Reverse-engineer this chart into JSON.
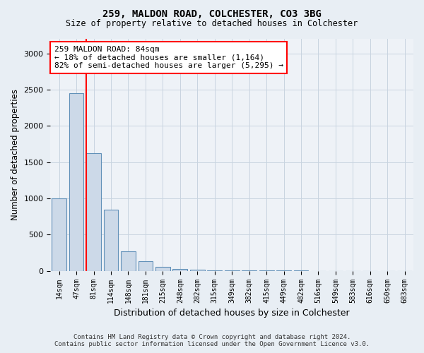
{
  "title1": "259, MALDON ROAD, COLCHESTER, CO3 3BG",
  "title2": "Size of property relative to detached houses in Colchester",
  "xlabel": "Distribution of detached houses by size in Colchester",
  "ylabel": "Number of detached properties",
  "categories": [
    "14sqm",
    "47sqm",
    "81sqm",
    "114sqm",
    "148sqm",
    "181sqm",
    "215sqm",
    "248sqm",
    "282sqm",
    "315sqm",
    "349sqm",
    "382sqm",
    "415sqm",
    "449sqm",
    "482sqm",
    "516sqm",
    "549sqm",
    "583sqm",
    "616sqm",
    "650sqm",
    "683sqm"
  ],
  "values": [
    1000,
    2450,
    1620,
    840,
    265,
    130,
    55,
    25,
    15,
    8,
    5,
    4,
    3,
    2,
    2,
    1,
    1,
    1,
    1,
    1,
    1
  ],
  "bar_color": "#ccd9e8",
  "bar_edge_color": "#6090b8",
  "red_line_bar_index": 2,
  "annotation_line1": "259 MALDON ROAD: 84sqm",
  "annotation_line2": "← 18% of detached houses are smaller (1,164)",
  "annotation_line3": "82% of semi-detached houses are larger (5,295) →",
  "annotation_box_facecolor": "white",
  "annotation_box_edgecolor": "red",
  "red_line_color": "red",
  "footnote": "Contains HM Land Registry data © Crown copyright and database right 2024.\nContains public sector information licensed under the Open Government Licence v3.0.",
  "ylim": [
    0,
    3200
  ],
  "yticks": [
    0,
    500,
    1000,
    1500,
    2000,
    2500,
    3000
  ],
  "fig_bg_color": "#e8eef4",
  "plot_bg_color": "#eef2f7"
}
